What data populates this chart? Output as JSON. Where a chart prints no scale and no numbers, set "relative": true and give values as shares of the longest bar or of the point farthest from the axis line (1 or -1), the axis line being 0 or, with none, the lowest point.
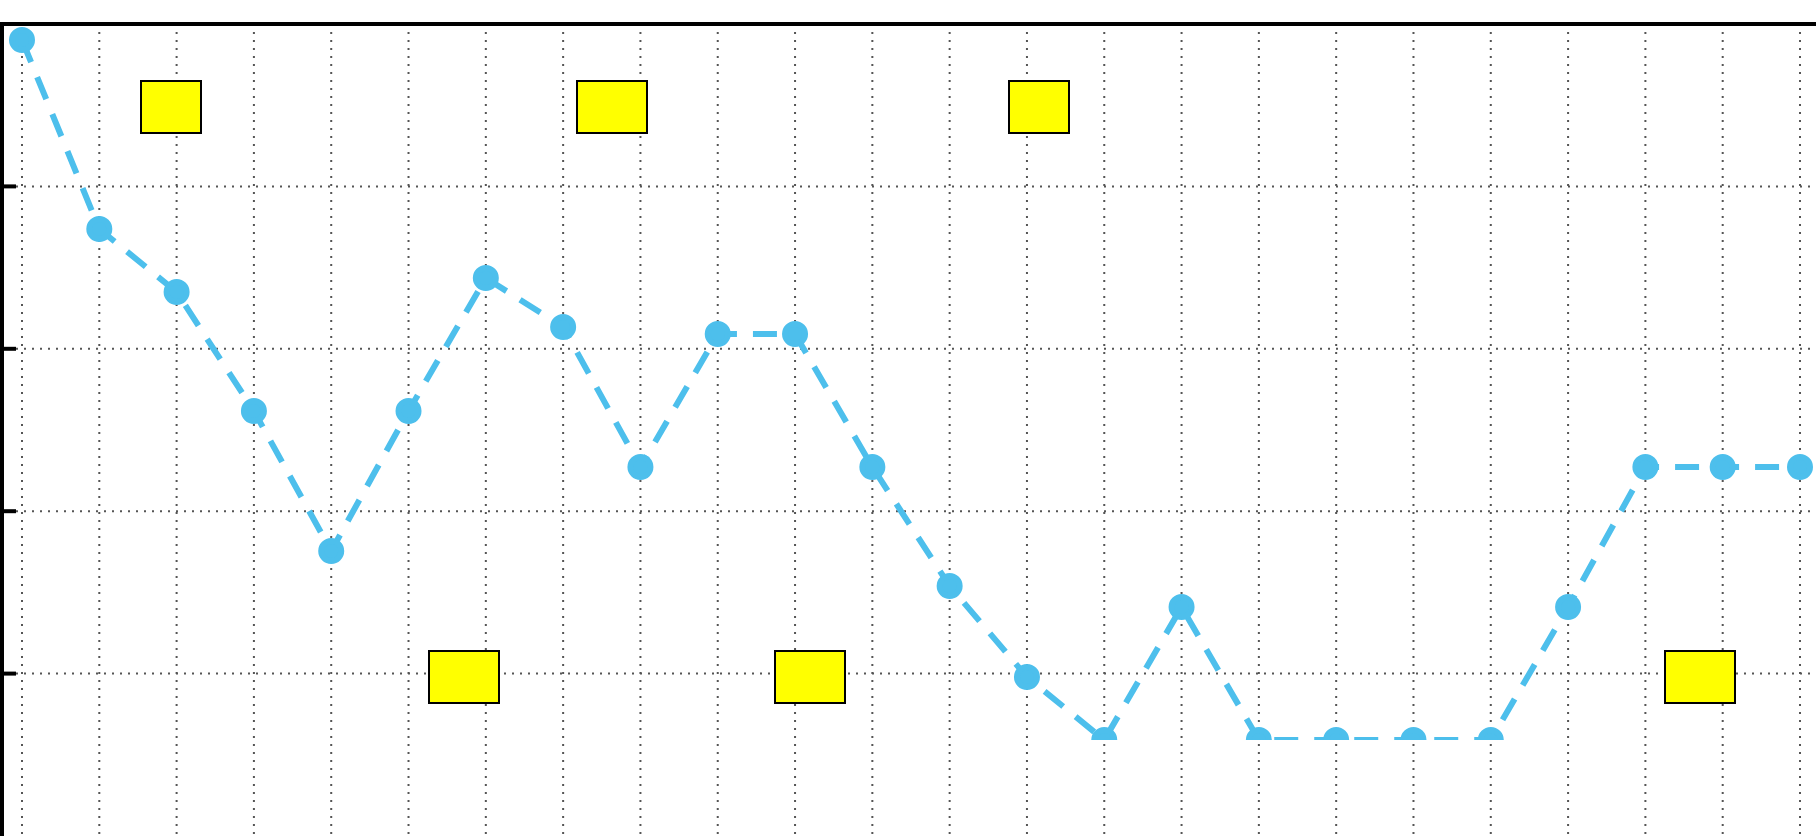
{
  "chart_data": {
    "type": "line",
    "relative": true,
    "categories": [
      null,
      null,
      null,
      null,
      null,
      null,
      null,
      null,
      null,
      null,
      null,
      null,
      null,
      null,
      null,
      null,
      null,
      null,
      null,
      null,
      null,
      null,
      null,
      null
    ],
    "series": [
      {
        "color": "#4dbfec",
        "values": [
          1,
          0.73,
          0.64,
          0.47,
          0.27,
          0.47,
          0.66,
          0.59,
          0.39,
          0.58,
          0.58,
          0.39,
          0.22,
          0.09,
          0,
          0.19,
          0,
          0,
          0,
          0,
          0.19,
          0.39,
          0.39,
          0.39
        ]
      }
    ],
    "grid": true,
    "legend": false,
    "marker": "circle",
    "line_style": "dashed"
  }
}
